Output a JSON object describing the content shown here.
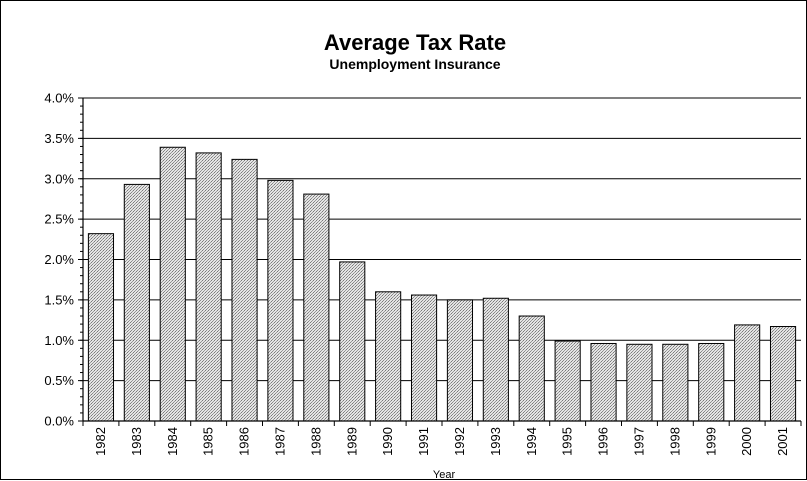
{
  "chart_data": {
    "type": "bar",
    "title": "Average Tax Rate",
    "subtitle": "Unemployment Insurance",
    "xlabel": "Year",
    "ylabel": "",
    "ylim": [
      0,
      0.04
    ],
    "yticks": [
      "0.0%",
      "0.5%",
      "1.0%",
      "1.5%",
      "2.0%",
      "2.5%",
      "3.0%",
      "3.5%",
      "4.0%"
    ],
    "grid": true,
    "categories": [
      "1982",
      "1983",
      "1984",
      "1985",
      "1986",
      "1987",
      "1988",
      "1989",
      "1990",
      "1991",
      "1992",
      "1993",
      "1994",
      "1995",
      "1996",
      "1997",
      "1998",
      "1999",
      "2000",
      "2001"
    ],
    "values": [
      0.0232,
      0.0293,
      0.0339,
      0.0332,
      0.0324,
      0.0298,
      0.0281,
      0.0197,
      0.016,
      0.0156,
      0.015,
      0.0152,
      0.013,
      0.0099,
      0.0096,
      0.0095,
      0.0095,
      0.0096,
      0.0119,
      0.0117
    ],
    "colors": {
      "bar_fill": "#c8c8c8",
      "bar_stroke": "#000000",
      "grid": "#000000"
    }
  }
}
